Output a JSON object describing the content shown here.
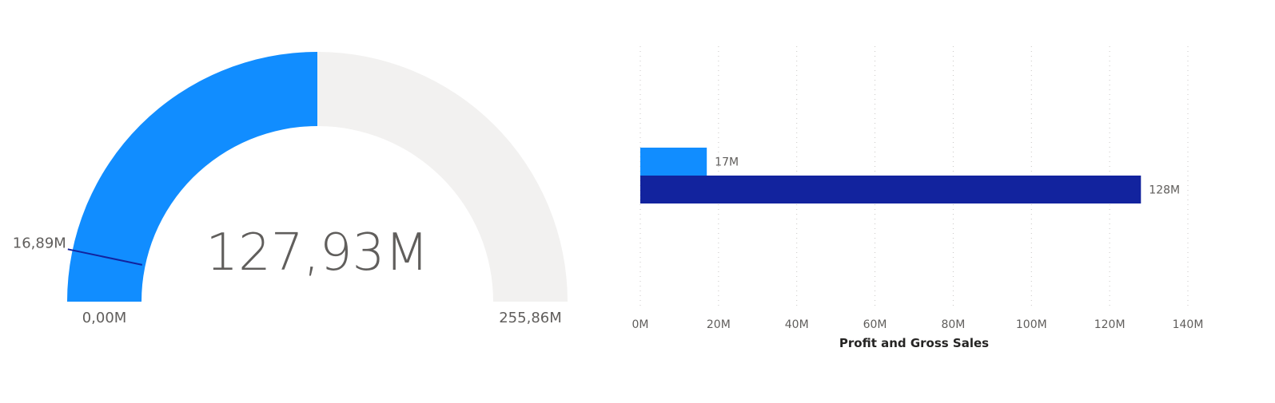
{
  "chart_data": [
    {
      "type": "gauge",
      "min": 0,
      "max": 255.86,
      "value": 127.93,
      "target": 16.89,
      "unit": "M",
      "value_label": "127,93M",
      "min_label": "0,00M",
      "max_label": "255,86M",
      "target_label": "16,89M",
      "colors": {
        "fill": "#118dff",
        "track": "#f2f1f0",
        "target": "#12239e"
      }
    },
    {
      "type": "bar",
      "orientation": "horizontal",
      "xlabel": "Profit and Gross Sales",
      "xlim": [
        0,
        140
      ],
      "x_ticks": [
        0,
        20,
        40,
        60,
        80,
        100,
        120,
        140
      ],
      "x_tick_labels": [
        "0M",
        "20M",
        "40M",
        "60M",
        "80M",
        "100M",
        "120M",
        "140M"
      ],
      "grid": "vertical dotted",
      "series": [
        {
          "values": [
            17
          ],
          "data_labels": [
            "17M"
          ],
          "color": "#118dff"
        },
        {
          "values": [
            128
          ],
          "data_labels": [
            "128M"
          ],
          "color": "#12239e"
        }
      ]
    }
  ]
}
